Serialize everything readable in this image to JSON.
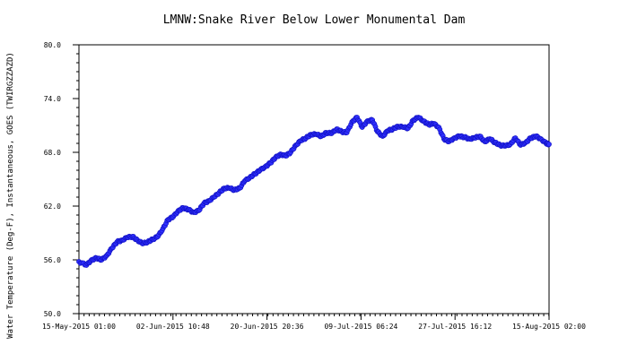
{
  "chart_data": {
    "type": "scatter",
    "title": "LMNW:Snake River Below Lower Monumental Dam",
    "xlabel": "",
    "ylabel": "Water Temperature (Deg-F), Instantaneous, GOES (TWIRGZZAZD)",
    "x_range": [
      "2015-05-15T01:00",
      "2015-08-15T02:00"
    ],
    "ylim": [
      50.0,
      80.0
    ],
    "y_ticks": [
      "50.0",
      "56.0",
      "62.0",
      "68.0",
      "74.0",
      "80.0"
    ],
    "y_tick_values": [
      50,
      56,
      62,
      68,
      74,
      80
    ],
    "x_ticks": [
      "15-May-2015 01:00",
      "02-Jun-2015 10:48",
      "20-Jun-2015 20:36",
      "09-Jul-2015 06:24",
      "27-Jul-2015 16:12",
      "15-Aug-2015 02:00"
    ],
    "x_tick_values": [
      "2015-05-15T01:00",
      "2015-06-02T10:48",
      "2015-06-20T20:36",
      "2015-07-09T06:24",
      "2015-07-27T16:12",
      "2015-08-15T02:00"
    ],
    "grid": false,
    "legend": "none",
    "series": [
      {
        "color": "#3030ff",
        "x": [
          "2015-05-15T01:00",
          "2015-05-16",
          "2015-05-17",
          "2015-05-18",
          "2015-05-19",
          "2015-05-20",
          "2015-05-21",
          "2015-05-22",
          "2015-05-23",
          "2015-05-24",
          "2015-05-25",
          "2015-05-26",
          "2015-05-27",
          "2015-05-28",
          "2015-05-29",
          "2015-05-30",
          "2015-05-31",
          "2015-06-01",
          "2015-06-02",
          "2015-06-03",
          "2015-06-04",
          "2015-06-05",
          "2015-06-06",
          "2015-06-07",
          "2015-06-08",
          "2015-06-09",
          "2015-06-10",
          "2015-06-11",
          "2015-06-12",
          "2015-06-13",
          "2015-06-14",
          "2015-06-15",
          "2015-06-16",
          "2015-06-17",
          "2015-06-18",
          "2015-06-19",
          "2015-06-20",
          "2015-06-21",
          "2015-06-22",
          "2015-06-23",
          "2015-06-24",
          "2015-06-25",
          "2015-06-26",
          "2015-06-27",
          "2015-06-28",
          "2015-06-29",
          "2015-06-30",
          "2015-07-01",
          "2015-07-02",
          "2015-07-03",
          "2015-07-04",
          "2015-07-05",
          "2015-07-06",
          "2015-07-07",
          "2015-07-08",
          "2015-07-09",
          "2015-07-10",
          "2015-07-11",
          "2015-07-12",
          "2015-07-13",
          "2015-07-14",
          "2015-07-15",
          "2015-07-16",
          "2015-07-17",
          "2015-07-18",
          "2015-07-19",
          "2015-07-20",
          "2015-07-21",
          "2015-07-22",
          "2015-07-23",
          "2015-07-24",
          "2015-07-25",
          "2015-07-26",
          "2015-07-27",
          "2015-07-28",
          "2015-07-29",
          "2015-07-30",
          "2015-07-31",
          "2015-08-01",
          "2015-08-02",
          "2015-08-03",
          "2015-08-04",
          "2015-08-05",
          "2015-08-06",
          "2015-08-07",
          "2015-08-08",
          "2015-08-09",
          "2015-08-10",
          "2015-08-11",
          "2015-08-12",
          "2015-08-13",
          "2015-08-14",
          "2015-08-15T02:00"
        ],
        "y": [
          55.8,
          55.4,
          56.0,
          56.2,
          56.0,
          56.5,
          57.3,
          58.0,
          58.2,
          58.5,
          58.6,
          58.2,
          57.8,
          58.0,
          58.3,
          58.6,
          59.5,
          60.5,
          60.8,
          61.5,
          61.8,
          61.6,
          61.3,
          61.5,
          62.3,
          62.6,
          63.0,
          63.5,
          64.0,
          64.0,
          63.8,
          64.0,
          64.8,
          65.2,
          65.6,
          66.0,
          66.4,
          66.8,
          67.4,
          67.8,
          67.6,
          68.0,
          68.8,
          69.3,
          69.6,
          70.0,
          70.0,
          69.8,
          70.2,
          70.1,
          70.6,
          70.3,
          70.2,
          71.4,
          71.9,
          70.8,
          71.5,
          71.6,
          70.3,
          69.8,
          70.4,
          70.6,
          70.9,
          70.8,
          70.7,
          71.6,
          71.9,
          71.5,
          71.1,
          71.2,
          70.8,
          69.5,
          69.2,
          69.6,
          69.8,
          69.7,
          69.5,
          69.6,
          69.8,
          69.2,
          69.5,
          69.1,
          68.8,
          68.7,
          68.9,
          69.6,
          68.8,
          69.1,
          69.6,
          69.8,
          69.5,
          69.0,
          68.9
        ]
      }
    ]
  }
}
